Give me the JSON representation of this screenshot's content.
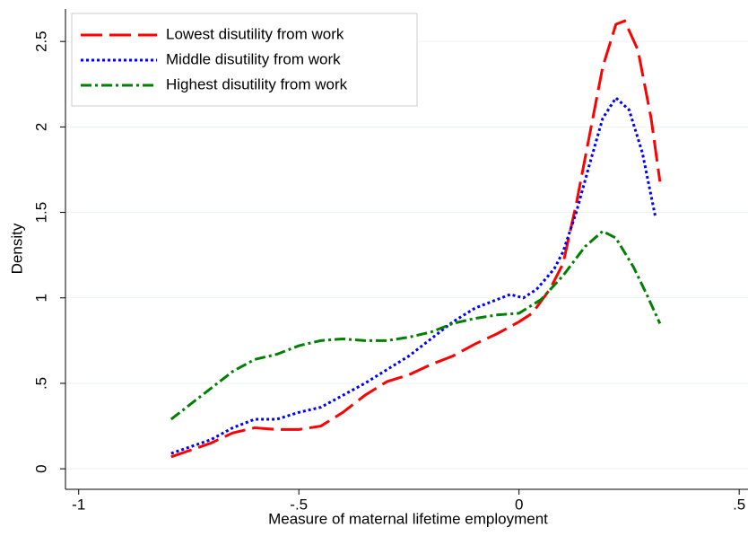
{
  "chart_data": {
    "type": "line",
    "xlabel": "Measure of maternal lifetime employment",
    "ylabel": "Density",
    "xlim": [
      -1.03,
      0.52
    ],
    "ylim": [
      -0.12,
      2.69
    ],
    "xticks": [
      -1,
      {
        "value": -0.5,
        "label": "-.5"
      },
      0,
      {
        "value": 0.5,
        "label": ".5"
      }
    ],
    "yticks": [
      0,
      {
        "value": 0.5,
        "label": ".5"
      },
      1,
      {
        "value": 1.5,
        "label": "1.5"
      },
      2,
      {
        "value": 2.5,
        "label": "2.5"
      }
    ],
    "grid": true,
    "legend": "top-left",
    "series": [
      {
        "name": "Lowest disutility from work",
        "color": "#ff0000",
        "dash": "24 8",
        "x": [
          -0.79,
          -0.7,
          -0.65,
          -0.6,
          -0.55,
          -0.5,
          -0.45,
          -0.4,
          -0.35,
          -0.3,
          -0.25,
          -0.2,
          -0.15,
          -0.1,
          -0.05,
          0,
          0.03,
          0.07,
          0.1,
          0.13,
          0.16,
          0.19,
          0.22,
          0.24,
          0.27,
          0.3,
          0.32
        ],
        "values": [
          0.07,
          0.15,
          0.21,
          0.24,
          0.23,
          0.23,
          0.25,
          0.33,
          0.43,
          0.51,
          0.55,
          0.61,
          0.66,
          0.73,
          0.79,
          0.86,
          0.91,
          1.05,
          1.2,
          1.55,
          1.95,
          2.35,
          2.6,
          2.62,
          2.45,
          2.05,
          1.68
        ]
      },
      {
        "name": "Middle disutility from work",
        "color": "#0000ff",
        "dash": "3 3",
        "x": [
          -0.79,
          -0.7,
          -0.65,
          -0.6,
          -0.55,
          -0.5,
          -0.45,
          -0.4,
          -0.35,
          -0.3,
          -0.25,
          -0.2,
          -0.15,
          -0.1,
          -0.05,
          -0.02,
          0.01,
          0.04,
          0.08,
          0.1,
          0.13,
          0.16,
          0.19,
          0.22,
          0.25,
          0.28,
          0.31
        ],
        "values": [
          0.09,
          0.17,
          0.24,
          0.29,
          0.29,
          0.33,
          0.36,
          0.43,
          0.5,
          0.58,
          0.66,
          0.76,
          0.86,
          0.94,
          0.99,
          1.02,
          1.0,
          1.05,
          1.17,
          1.27,
          1.5,
          1.78,
          2.05,
          2.17,
          2.1,
          1.85,
          1.47
        ]
      },
      {
        "name": "Highest disutility from work",
        "color": "#008000",
        "dash": "12 4 3 4",
        "x": [
          -0.79,
          -0.7,
          -0.65,
          -0.6,
          -0.55,
          -0.5,
          -0.45,
          -0.4,
          -0.35,
          -0.3,
          -0.25,
          -0.2,
          -0.15,
          -0.1,
          -0.05,
          0,
          0.05,
          0.1,
          0.15,
          0.19,
          0.22,
          0.26,
          0.29,
          0.32
        ],
        "values": [
          0.29,
          0.47,
          0.57,
          0.64,
          0.67,
          0.72,
          0.75,
          0.76,
          0.75,
          0.75,
          0.77,
          0.8,
          0.85,
          0.88,
          0.9,
          0.91,
          0.99,
          1.13,
          1.3,
          1.39,
          1.35,
          1.18,
          1.02,
          0.85
        ]
      }
    ]
  }
}
